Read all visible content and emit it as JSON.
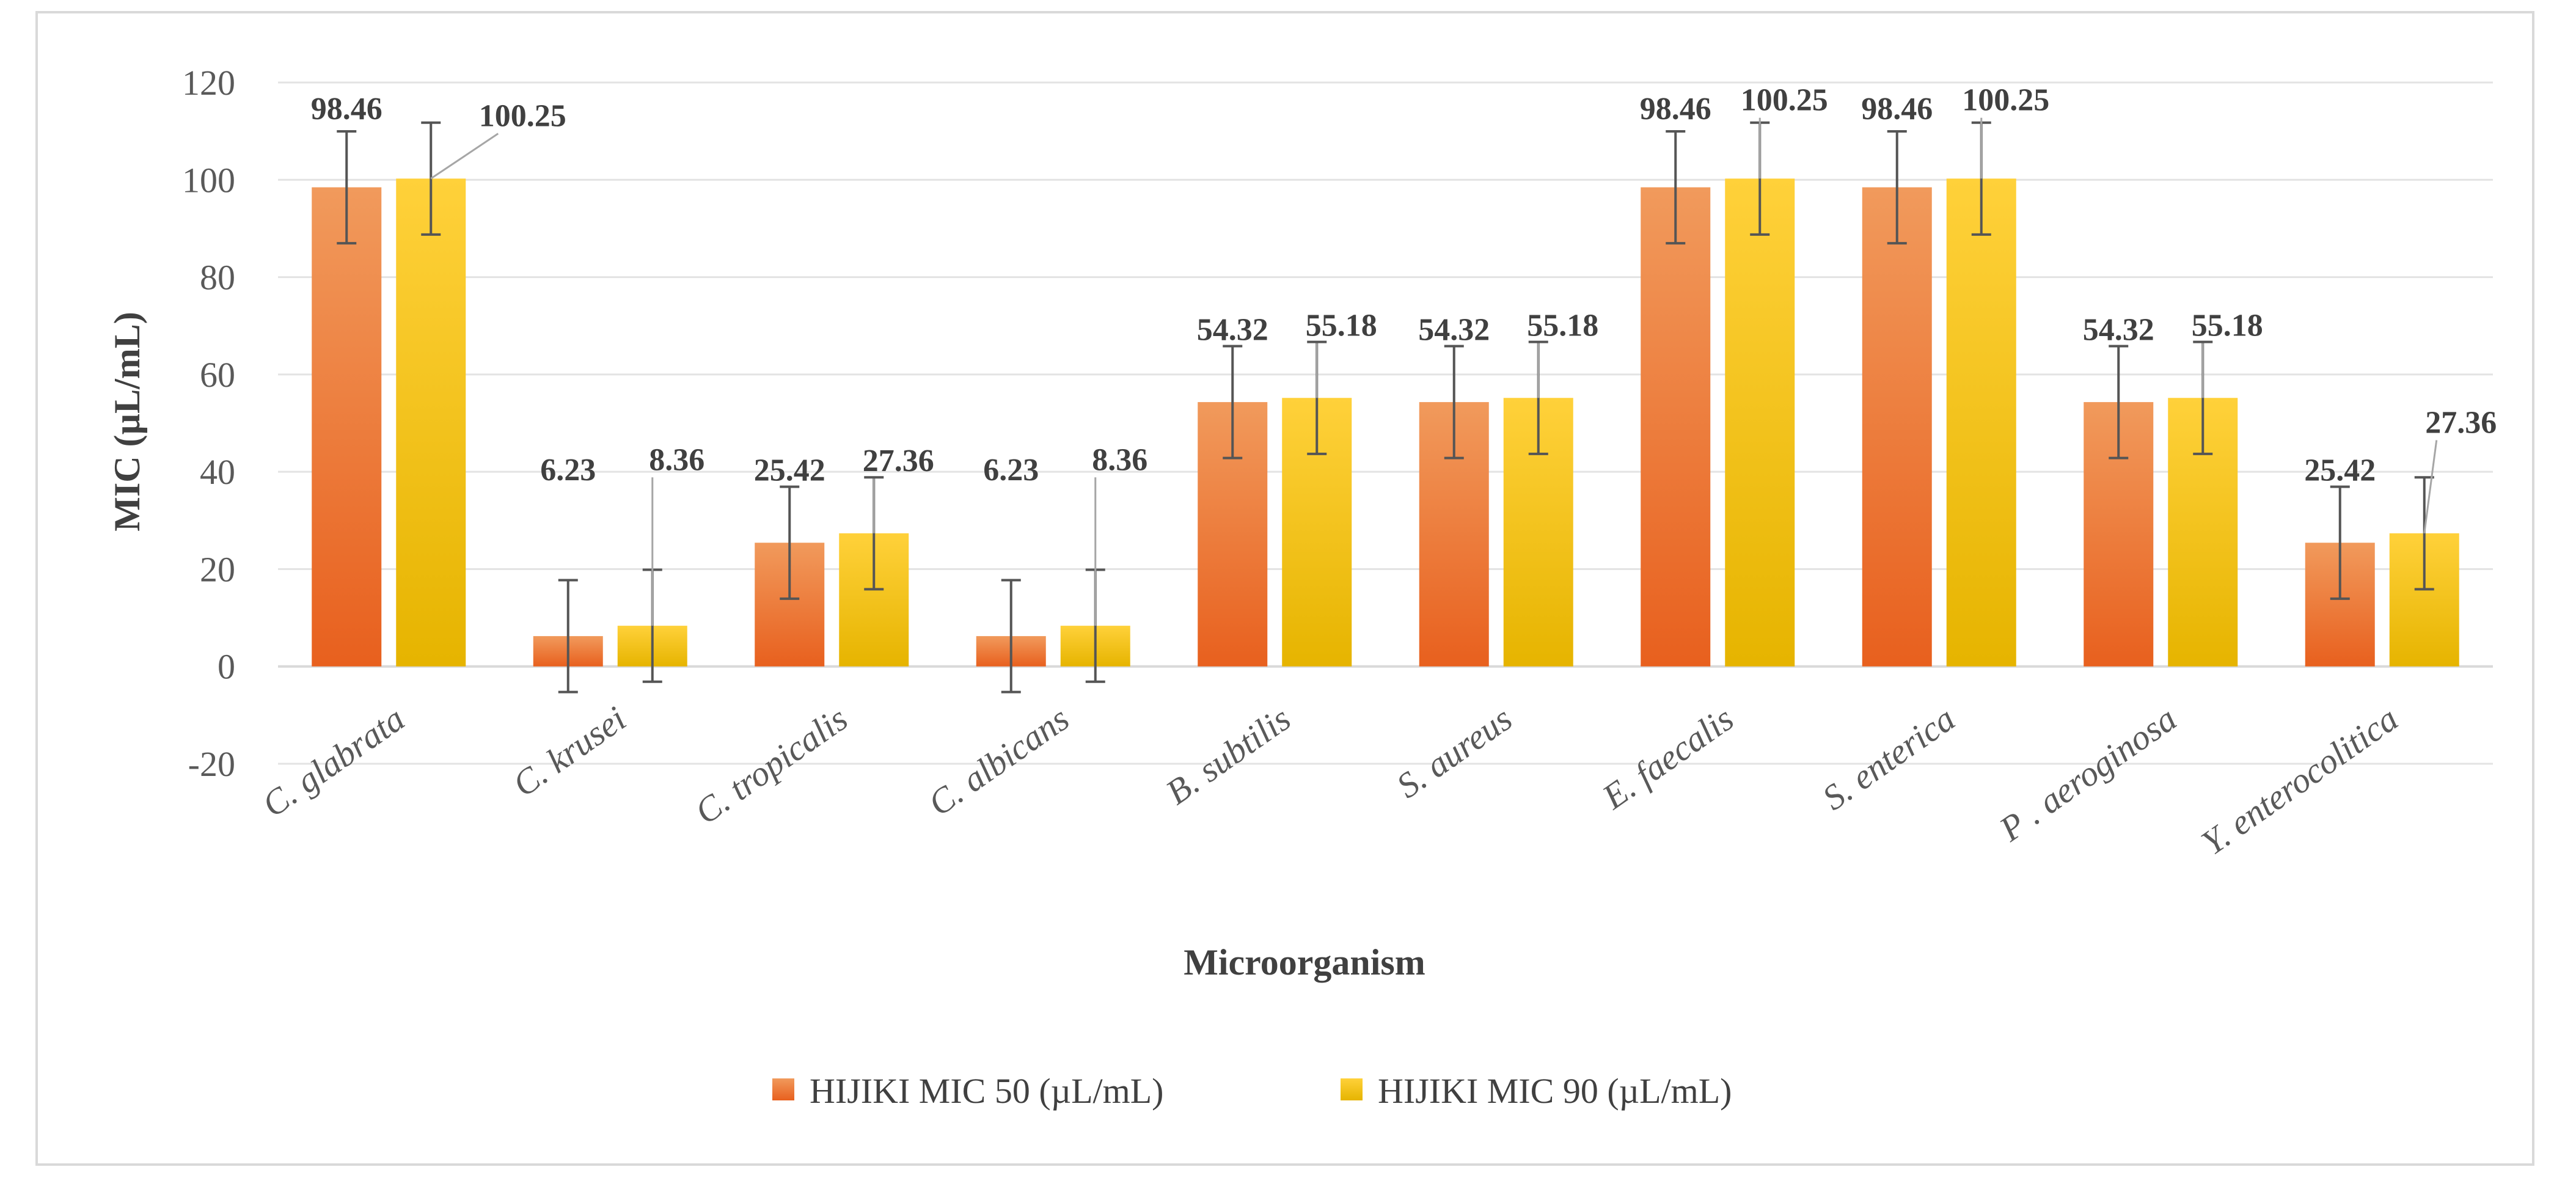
{
  "chart_data": {
    "type": "bar",
    "title": "",
    "xlabel": "Microorganism",
    "ylabel": "MIC (µL/mL)",
    "ylim": [
      -20,
      120
    ],
    "yticks": [
      -20,
      0,
      20,
      40,
      60,
      80,
      100,
      120
    ],
    "grid": true,
    "legend_position": "bottom",
    "categories": [
      "C. glabrata",
      "C. krusei",
      "C. tropicalis",
      "C. albicans",
      "B. subtilis",
      "S. aureus",
      "E. faecalis",
      "S. enterica",
      "P . aeroginosa",
      "Y. enterocolitica"
    ],
    "series": [
      {
        "name": "HIJIKI MIC 50 (µL/mL)",
        "color_top": "#f19a5c",
        "color_bottom": "#e8601e",
        "values": [
          98.46,
          6.23,
          25.42,
          6.23,
          54.32,
          54.32,
          98.46,
          98.46,
          54.32,
          25.42
        ],
        "labels": [
          "98.46",
          "6.23",
          "25.42",
          "6.23",
          "54.32",
          "54.32",
          "98.46",
          "98.46",
          "54.32",
          "25.42"
        ],
        "error": 11.5
      },
      {
        "name": "HIJIKI MIC 90 (µL/mL)",
        "color_top": "#ffd13a",
        "color_bottom": "#e6b400",
        "values": [
          100.25,
          8.36,
          27.36,
          8.36,
          55.18,
          55.18,
          100.25,
          100.25,
          55.18,
          27.36
        ],
        "labels": [
          "100.25",
          "8.36",
          "27.36",
          "8.36",
          "55.18",
          "55.18",
          "100.25",
          "100.25",
          "55.18",
          "27.36"
        ],
        "error": 11.5
      }
    ]
  }
}
